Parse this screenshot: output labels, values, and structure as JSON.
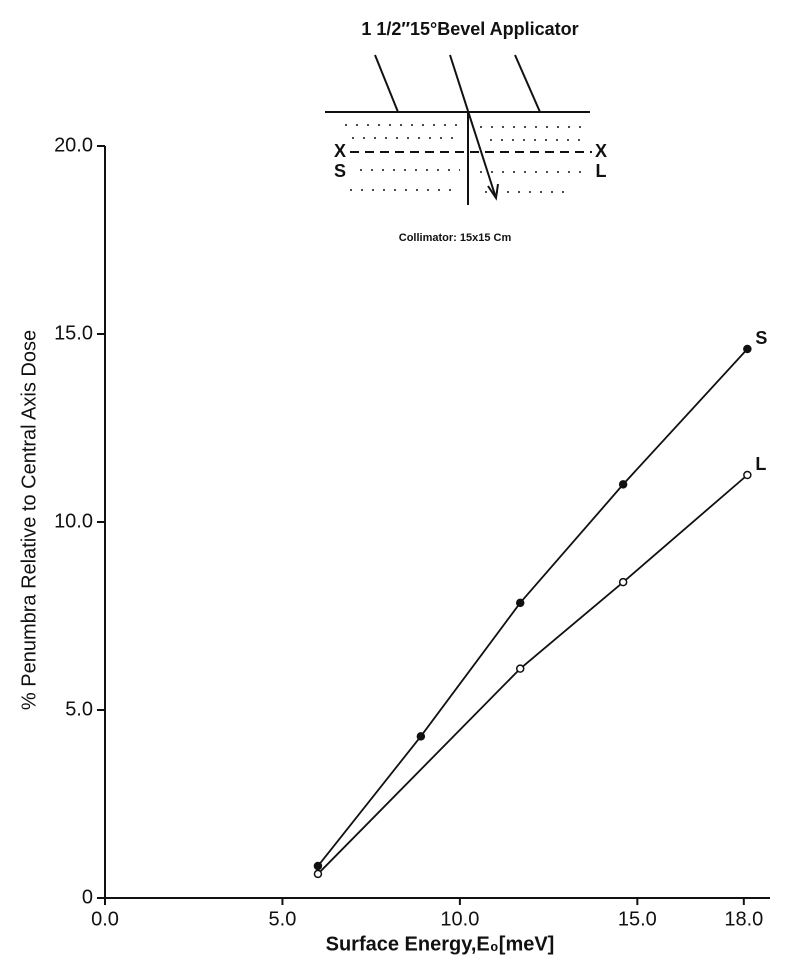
{
  "chart_data": {
    "type": "line",
    "title": "1 1/2″15°Bevel Applicator",
    "caption": "Collimator: 15x15 Cm",
    "inset_labels": [
      "X",
      "X",
      "S",
      "L"
    ],
    "x_label": "Surface Energy,E₀[meV]",
    "y_label": "% Penumbra Relative to Central Axis Dose",
    "xlim": [
      0,
      18.4
    ],
    "ylim": [
      0,
      20
    ],
    "xticks": [
      {
        "value": 0,
        "label": "0.0"
      },
      {
        "value": 5,
        "label": "5.0"
      },
      {
        "value": 10,
        "label": "10.0"
      },
      {
        "value": 15,
        "label": "15.0"
      },
      {
        "value": 18,
        "label": "18.0"
      }
    ],
    "yticks": [
      0,
      {
        "value": 5,
        "label": "5.0"
      },
      {
        "value": 10,
        "label": "10.0"
      },
      {
        "value": 15,
        "label": "15.0"
      },
      {
        "value": 20,
        "label": "20.0"
      }
    ],
    "series": [
      {
        "name": "S",
        "color": "#111111",
        "marker": "filled",
        "x": [
          6.0,
          8.9,
          11.7,
          14.6,
          18.1
        ],
        "values": [
          0.85,
          4.3,
          7.85,
          11.0,
          14.6
        ]
      },
      {
        "name": "L",
        "color": "#111111",
        "marker": "open",
        "x": [
          6.0,
          11.7,
          14.6,
          18.1
        ],
        "values": [
          0.64,
          6.1,
          8.4,
          11.25
        ]
      }
    ]
  }
}
